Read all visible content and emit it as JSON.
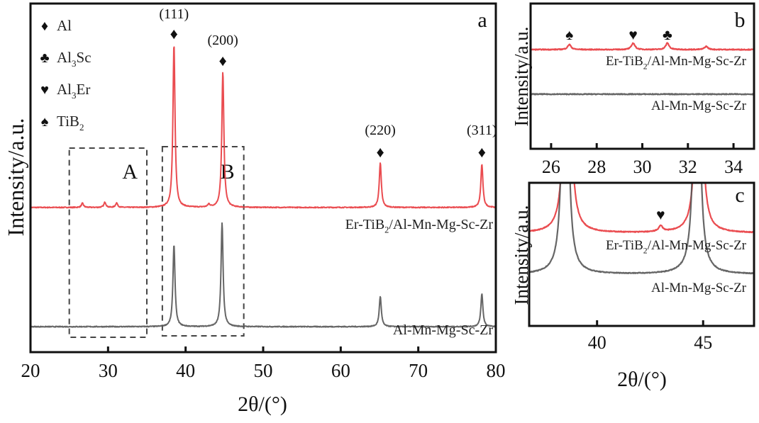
{
  "chart_data": [
    {
      "id": "a",
      "type": "line",
      "panel_label": "a",
      "xlabel": "2θ/(°)",
      "ylabel": "Intensity/a.u.",
      "xlim": [
        20,
        80
      ],
      "ylim": [
        0,
        100
      ],
      "xticks": [
        20,
        30,
        40,
        50,
        60,
        70,
        80
      ],
      "legend": [
        {
          "symbol": "♦",
          "name": "Al",
          "main": "Al",
          "sub": "",
          "tail": ""
        },
        {
          "symbol": "♣",
          "name": "Al3Sc",
          "main": "Al",
          "sub": "3",
          "tail": "Sc"
        },
        {
          "symbol": "♥",
          "name": "Al3Er",
          "main": "Al",
          "sub": "3",
          "tail": "Er"
        },
        {
          "symbol": "♠",
          "name": "TiB2",
          "main": "TiB",
          "sub": "2",
          "tail": ""
        }
      ],
      "series": [
        {
          "name": "Er-TiB2/Al-Mn-Mg-Sc-Zr",
          "label_main": "Er-TiB",
          "label_sub": "2",
          "label_tail": "/Al-Mn-Mg-Sc-Zr",
          "color": "#e8383d",
          "baseline": 41.5,
          "peaks": [
            [
              26.7,
              1.2
            ],
            [
              29.6,
              1.5
            ],
            [
              31.1,
              1.3
            ],
            [
              38.5,
              46.7
            ],
            [
              43.0,
              0.8
            ],
            [
              44.8,
              38.8
            ],
            [
              65.1,
              12.8
            ],
            [
              78.2,
              12.4
            ]
          ]
        },
        {
          "name": "Al-Mn-Mg-Sc-Zr",
          "label_main": "Al-Mn-Mg-Sc-Zr",
          "label_sub": "",
          "label_tail": "",
          "color": "#555555",
          "baseline": 7.3,
          "peaks": [
            [
              38.5,
              23.6
            ],
            [
              44.7,
              29.7
            ],
            [
              65.1,
              8.7
            ],
            [
              78.2,
              9.4
            ]
          ]
        }
      ],
      "annotations": [
        {
          "text": "(111)",
          "symbol": "♦",
          "x": 38.5
        },
        {
          "text": "(200)",
          "symbol": "♦",
          "x": 44.8
        },
        {
          "text": "(220)",
          "symbol": "♦",
          "x": 65.1
        },
        {
          "text": "(311)",
          "symbol": "♦",
          "x": 78.2
        }
      ],
      "regions": [
        {
          "label": "A",
          "x": [
            25,
            35
          ]
        },
        {
          "label": "B",
          "x": [
            37,
            47.5
          ]
        }
      ]
    },
    {
      "id": "b",
      "type": "line",
      "panel_label": "b",
      "ylabel": "Intensity/a.u.",
      "xlim": [
        25.1,
        34.9
      ],
      "ylim": [
        0,
        100
      ],
      "xticks": [
        26,
        28,
        30,
        32,
        34
      ],
      "series": [
        {
          "name": "Er-TiB2/Al-Mn-Mg-Sc-Zr",
          "label_main": "Er-TiB",
          "label_sub": "2",
          "label_tail": "/Al-Mn-Mg-Sc-Zr",
          "color": "#e8383d",
          "baseline": 68.3,
          "peaks": [
            [
              26.8,
              3.5
            ],
            [
              29.6,
              4.5
            ],
            [
              31.1,
              4.5
            ],
            [
              32.8,
              2.2
            ]
          ]
        },
        {
          "name": "Al-Mn-Mg-Sc-Zr",
          "label_main": "Al-Mn-Mg-Sc-Zr",
          "label_sub": "",
          "label_tail": "",
          "color": "#555555",
          "baseline": 37.6,
          "peaks": []
        }
      ],
      "annotations": [
        {
          "text": "",
          "symbol": "♠",
          "x": 26.8
        },
        {
          "text": "",
          "symbol": "♥",
          "x": 29.6
        },
        {
          "text": "",
          "symbol": "♣",
          "x": 31.1
        }
      ]
    },
    {
      "id": "c",
      "type": "line",
      "panel_label": "c",
      "ylabel": "Intensity/a.u.",
      "xlabel": "2θ/(°)",
      "xlim": [
        36.8,
        47.4
      ],
      "ylim": [
        0,
        100
      ],
      "xticks": [
        40,
        45
      ],
      "series": [
        {
          "name": "Er-TiB2/Al-Mn-Mg-Sc-Zr",
          "label_main": "Er-TiB",
          "label_sub": "2",
          "label_tail": "/Al-Mn-Mg-Sc-Zr",
          "color": "#e8383d",
          "baseline": 64.9,
          "peaks": [
            [
              38.6,
              300
            ],
            [
              43.0,
              4
            ],
            [
              44.8,
              260
            ]
          ]
        },
        {
          "name": "Al-Mn-Mg-Sc-Zr",
          "label_main": "Al-Mn-Mg-Sc-Zr",
          "label_sub": "",
          "label_tail": "",
          "color": "#555555",
          "baseline": 36.1,
          "peaks": [
            [
              38.5,
              300
            ],
            [
              44.7,
              300
            ]
          ]
        }
      ],
      "annotations": [
        {
          "text": "",
          "symbol": "♥",
          "x": 43.0
        }
      ]
    }
  ]
}
